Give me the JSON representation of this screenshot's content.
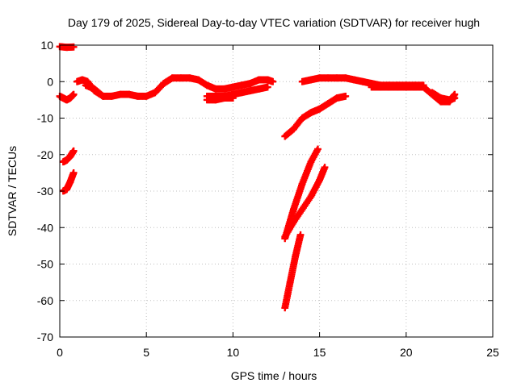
{
  "chart_data": {
    "type": "scatter",
    "title": "Day 179 of 2025, Sidereal Day-to-day VTEC variation (SDTVAR) for receiver hugh",
    "xlabel": "GPS time / hours",
    "ylabel": "SDTVAR / TECUs",
    "xlim": [
      0,
      25
    ],
    "ylim": [
      -70,
      10
    ],
    "x_ticks": [
      0,
      5,
      10,
      15,
      20,
      25
    ],
    "y_ticks": [
      10,
      0,
      -10,
      -20,
      -30,
      -40,
      -50,
      -60,
      -70
    ],
    "grid": true,
    "legend": "none",
    "series": [
      {
        "color": "#ff0000",
        "segments": [
          {
            "x": [
              0.0,
              0.4,
              0.8
            ],
            "y": [
              9.6,
              9.4,
              9.5
            ]
          },
          {
            "x": [
              0.0,
              0.2,
              0.4,
              0.6,
              0.8
            ],
            "y": [
              -4.0,
              -4.5,
              -5.0,
              -4.5,
              -3.5
            ]
          },
          {
            "x": [
              0.2,
              0.4,
              0.6,
              0.8
            ],
            "y": [
              -22.0,
              -21.5,
              -20.5,
              -19.0
            ]
          },
          {
            "x": [
              0.2,
              0.4,
              0.6,
              0.8
            ],
            "y": [
              -30.0,
              -29.5,
              -27.5,
              -25.0
            ]
          },
          {
            "x": [
              1.0,
              1.3,
              1.6,
              2.0,
              2.5,
              3.0,
              3.5,
              4.0,
              4.5,
              5.0,
              5.5,
              6.0,
              6.5,
              7.0,
              7.5,
              8.0,
              8.5,
              9.0,
              9.5,
              10.0,
              10.5,
              11.0,
              11.5,
              12.0,
              12.3
            ],
            "y": [
              0.0,
              0.5,
              0.0,
              -2.5,
              -4.0,
              -4.0,
              -3.5,
              -3.5,
              -4.0,
              -4.0,
              -3.0,
              -0.5,
              1.0,
              1.0,
              1.0,
              0.5,
              -1.0,
              -2.0,
              -2.0,
              -1.5,
              -1.0,
              -0.5,
              0.5,
              0.5,
              0.0
            ]
          },
          {
            "x": [
              1.5,
              2.0,
              2.5
            ],
            "y": [
              -1.0,
              -2.0,
              -4.0
            ]
          },
          {
            "x": [
              8.5,
              9.0,
              9.5,
              10.0,
              10.5,
              11.0,
              11.5,
              12.0
            ],
            "y": [
              -4.0,
              -4.0,
              -4.0,
              -3.5,
              -3.0,
              -2.5,
              -2.0,
              -1.5
            ]
          },
          {
            "x": [
              8.5,
              9.0,
              9.5,
              10.0
            ],
            "y": [
              -5.0,
              -5.0,
              -4.5,
              -4.5
            ]
          },
          {
            "x": [
              14.0,
              14.5,
              15.0,
              15.5,
              16.0,
              16.5,
              17.0,
              17.5,
              18.0,
              18.5,
              19.0,
              19.5,
              20.0,
              20.5,
              21.0
            ],
            "y": [
              0.0,
              0.5,
              1.0,
              1.0,
              1.0,
              1.0,
              0.5,
              0.0,
              -0.5,
              -1.0,
              -1.0,
              -1.0,
              -1.0,
              -1.0,
              -1.0
            ]
          },
          {
            "x": [
              18.0,
              18.5,
              19.0,
              19.5,
              20.0,
              20.5,
              21.0
            ],
            "y": [
              -1.5,
              -1.5,
              -1.5,
              -1.5,
              -1.5,
              -1.5,
              -1.5
            ]
          },
          {
            "x": [
              21.0,
              21.5,
              22.0,
              22.5,
              22.8
            ],
            "y": [
              -1.5,
              -3.5,
              -5.5,
              -5.5,
              -3.5
            ]
          },
          {
            "x": [
              21.5,
              22.0,
              22.5,
              22.8
            ],
            "y": [
              -3.0,
              -4.5,
              -5.0,
              -4.5
            ]
          },
          {
            "x": [
              13.0,
              13.5,
              14.0,
              14.5,
              15.0,
              15.5,
              16.0,
              16.5
            ],
            "y": [
              -15.0,
              -13.0,
              -10.0,
              -8.5,
              -7.5,
              -6.0,
              -4.5,
              -4.0
            ]
          },
          {
            "x": [
              13.0,
              13.5,
              14.0,
              14.5,
              14.9
            ],
            "y": [
              -43.0,
              -35.0,
              -28.0,
              -22.0,
              -18.5
            ]
          },
          {
            "x": [
              13.0,
              13.5,
              14.0,
              14.5,
              15.0,
              15.3
            ],
            "y": [
              -42.5,
              -38.5,
              -35.0,
              -31.5,
              -27.0,
              -23.5
            ]
          },
          {
            "x": [
              13.0,
              13.3,
              13.6,
              13.9
            ],
            "y": [
              -62.0,
              -55.0,
              -48.0,
              -42.0
            ]
          }
        ]
      }
    ]
  }
}
